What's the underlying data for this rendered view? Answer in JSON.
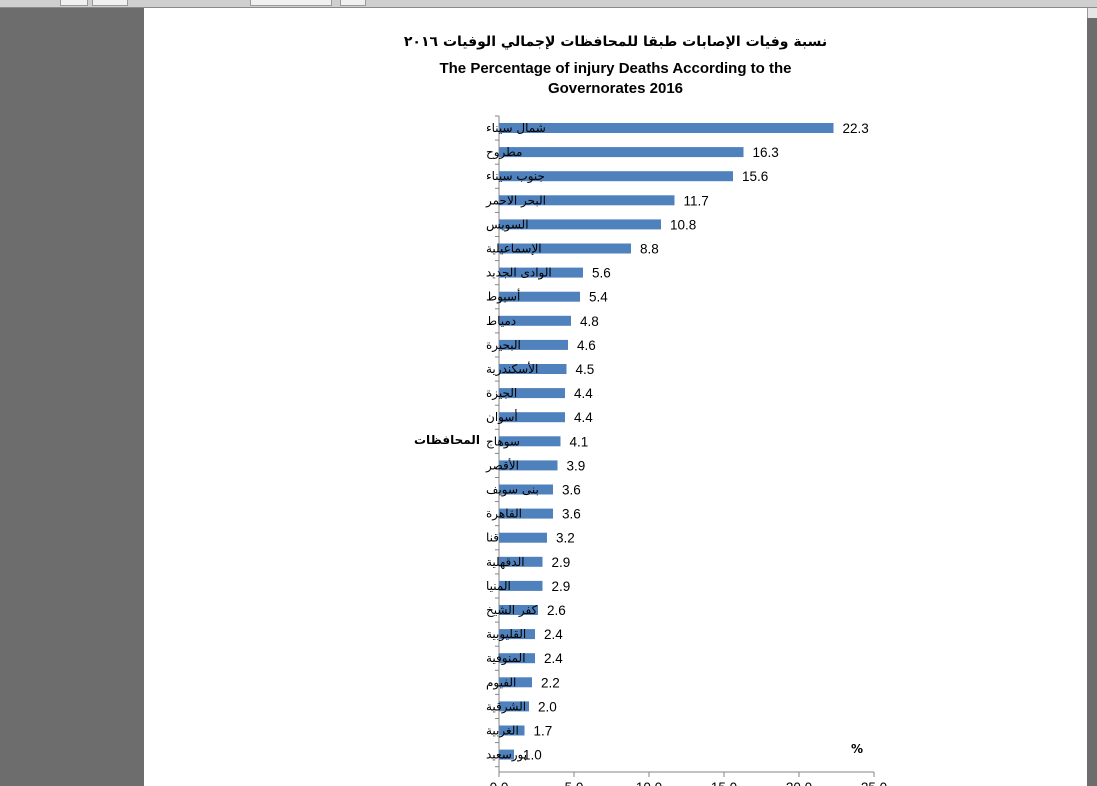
{
  "chart_data": {
    "type": "bar",
    "orientation": "horizontal",
    "title_ar": "نسبة وفيات الإصابات طبقا للمحافظات لإجمالي الوفيات ٢٠١٦",
    "title_en_line1": "The Percentage of injury Deaths According to the",
    "title_en_line2": "Governorates 2016",
    "ylabel": "المحافظات",
    "xlabel": "%",
    "categories": [
      "شمال سيناء",
      "مطروح",
      "جنوب سيناء",
      "البحر الاحمر",
      "السويس",
      "الإسماعيلية",
      "الوادى الجديد",
      "أسيوط",
      "دمياط",
      "البحيرة",
      "الأسكندرية",
      "الجيزة",
      "أسوان",
      "سوهاج",
      "الأقصر",
      "بنى سويف",
      "القاهرة",
      "قنا",
      "الدقهلية",
      "المنيا",
      "كفر الشيخ",
      "القليوبية",
      "المنوفية",
      "الفيوم",
      "الشرقية",
      "الغربية",
      "بورسعيد"
    ],
    "values": [
      22.3,
      16.3,
      15.6,
      11.7,
      10.8,
      8.8,
      5.6,
      5.4,
      4.8,
      4.6,
      4.5,
      4.4,
      4.4,
      4.1,
      3.9,
      3.6,
      3.6,
      3.2,
      2.9,
      2.9,
      2.6,
      2.4,
      2.4,
      2.2,
      2.0,
      1.7,
      1.0
    ],
    "value_labels": [
      "22.3",
      "16.3",
      "15.6",
      "11.7",
      "10.8",
      "8.8",
      "5.6",
      "5.4",
      "4.8",
      "4.6",
      "4.5",
      "4.4",
      "4.4",
      "4.1",
      "3.9",
      "3.6",
      "3.6",
      "3.2",
      "2.9",
      "2.9",
      "2.6",
      "2.4",
      "2.4",
      "2.2",
      "2.0",
      "1.7",
      "1.0"
    ],
    "xlim": [
      0,
      25
    ],
    "xticks": [
      0,
      5,
      10,
      15,
      20,
      25
    ],
    "xtick_labels": [
      "0.0",
      "5.0",
      "10.0",
      "15.0",
      "20.0",
      "25.0"
    ],
    "grid": false,
    "legend": "none",
    "bar_color": "#4f81bd"
  }
}
